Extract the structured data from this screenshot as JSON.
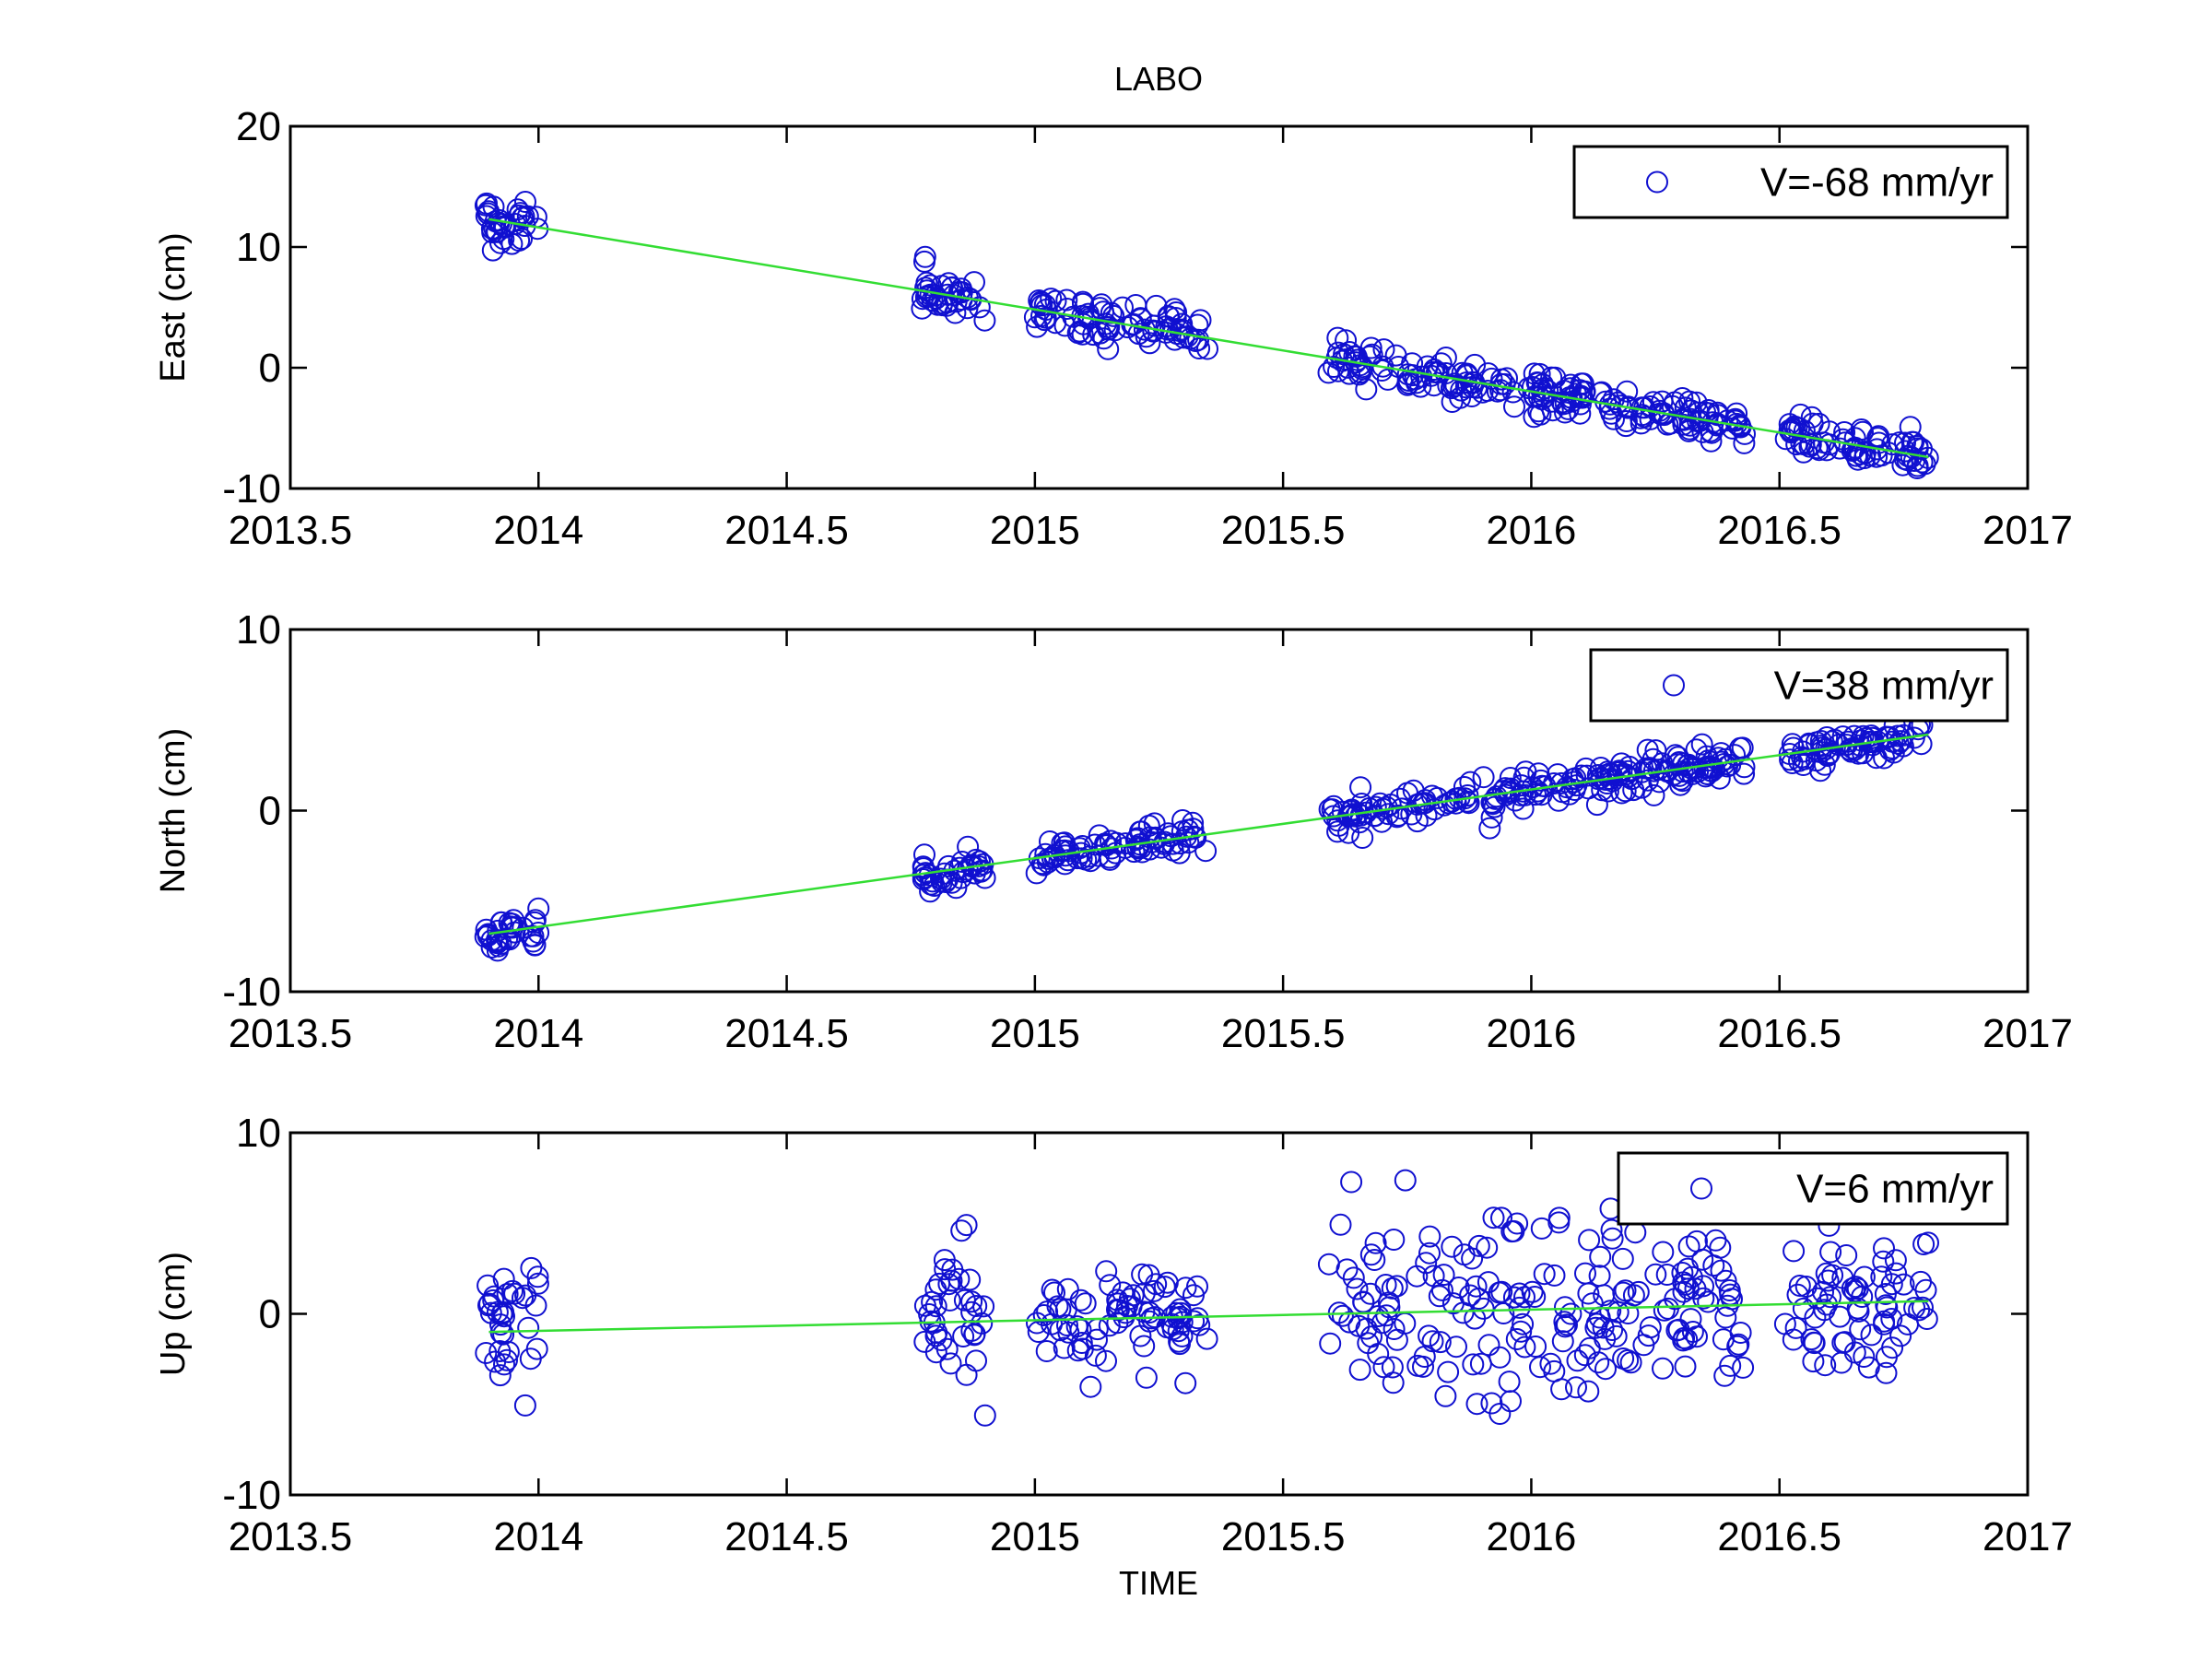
{
  "figure": {
    "title": "LABO",
    "xlabel": "TIME",
    "colors": {
      "points": "#1010d0",
      "fit": "#33dd33",
      "axes": "#000000",
      "background": "#ffffff"
    }
  },
  "chart_data": [
    {
      "type": "scatter",
      "id": "east",
      "ylabel": "East (cm)",
      "legend": "V=-68 mm/yr",
      "legend_position": "top-right",
      "xlim": [
        2013.5,
        2017
      ],
      "ylim": [
        -10,
        20
      ],
      "xticks": [
        2013.5,
        2014,
        2014.5,
        2015,
        2015.5,
        2016,
        2016.5,
        2017
      ],
      "xtick_labels": [
        "2013.5",
        "2014",
        "2014.5",
        "2015",
        "2015.5",
        "2016",
        "2016.5",
        "2017"
      ],
      "yticks": [
        -10,
        0,
        10,
        20
      ],
      "ytick_labels": [
        "-10",
        "0",
        "10",
        "20"
      ],
      "trend": {
        "x": [
          2013.9,
          2016.8
        ],
        "y": [
          12.3,
          -7.4
        ]
      },
      "segments": [
        {
          "x_start": 2013.89,
          "x_end": 2014.0,
          "count": 34,
          "scatter": 1.0
        },
        {
          "x_start": 2014.77,
          "x_end": 2014.9,
          "count": 38,
          "scatter": 0.8
        },
        {
          "x_start": 2015.0,
          "x_end": 2015.35,
          "count": 80,
          "scatter": 0.9
        },
        {
          "x_start": 2015.59,
          "x_end": 2016.43,
          "count": 200,
          "scatter": 0.9
        },
        {
          "x_start": 2016.51,
          "x_end": 2016.8,
          "count": 70,
          "scatter": 0.8
        }
      ],
      "seed": 11
    },
    {
      "type": "scatter",
      "id": "north",
      "ylabel": "North (cm)",
      "legend": "V=38 mm/yr",
      "legend_position": "top-right",
      "xlim": [
        2013.5,
        2017
      ],
      "ylim": [
        -10,
        10
      ],
      "xticks": [
        2013.5,
        2014,
        2014.5,
        2015,
        2015.5,
        2016,
        2016.5,
        2017
      ],
      "xtick_labels": [
        "2013.5",
        "2014",
        "2014.5",
        "2015",
        "2015.5",
        "2016",
        "2016.5",
        "2017"
      ],
      "yticks": [
        -10,
        0,
        10
      ],
      "ytick_labels": [
        "-10",
        "0",
        "10"
      ],
      "trend": {
        "x": [
          2013.9,
          2016.8
        ],
        "y": [
          -6.8,
          4.2
        ]
      },
      "segments": [
        {
          "x_start": 2013.89,
          "x_end": 2014.0,
          "count": 34,
          "scatter": 0.45
        },
        {
          "x_start": 2014.77,
          "x_end": 2014.9,
          "count": 38,
          "scatter": 0.5
        },
        {
          "x_start": 2015.0,
          "x_end": 2015.35,
          "count": 80,
          "scatter": 0.4
        },
        {
          "x_start": 2015.59,
          "x_end": 2016.43,
          "count": 200,
          "scatter": 0.5
        },
        {
          "x_start": 2016.51,
          "x_end": 2016.8,
          "count": 70,
          "scatter": 0.4
        }
      ],
      "seed": 23
    },
    {
      "type": "scatter",
      "id": "up",
      "ylabel": "Up (cm)",
      "legend": "V=6 mm/yr",
      "legend_position": "top-right",
      "xlim": [
        2013.5,
        2017
      ],
      "ylim": [
        -10,
        10
      ],
      "xticks": [
        2013.5,
        2014,
        2014.5,
        2015,
        2015.5,
        2016,
        2016.5,
        2017
      ],
      "xtick_labels": [
        "2013.5",
        "2014",
        "2014.5",
        "2015",
        "2015.5",
        "2016",
        "2016.5",
        "2017"
      ],
      "yticks": [
        -10,
        0,
        10
      ],
      "ytick_labels": [
        "-10",
        "0",
        "10"
      ],
      "trend": {
        "x": [
          2013.9,
          2016.8
        ],
        "y": [
          -1.0,
          0.7
        ]
      },
      "segments": [
        {
          "x_start": 2013.89,
          "x_end": 2014.0,
          "count": 34,
          "scatter": 2.0
        },
        {
          "x_start": 2014.77,
          "x_end": 2014.9,
          "count": 38,
          "scatter": 2.2
        },
        {
          "x_start": 2015.0,
          "x_end": 2015.35,
          "count": 80,
          "scatter": 1.5
        },
        {
          "x_start": 2015.59,
          "x_end": 2016.43,
          "count": 200,
          "scatter": 2.4
        },
        {
          "x_start": 2016.51,
          "x_end": 2016.8,
          "count": 70,
          "scatter": 1.9
        }
      ],
      "seed": 37
    }
  ]
}
